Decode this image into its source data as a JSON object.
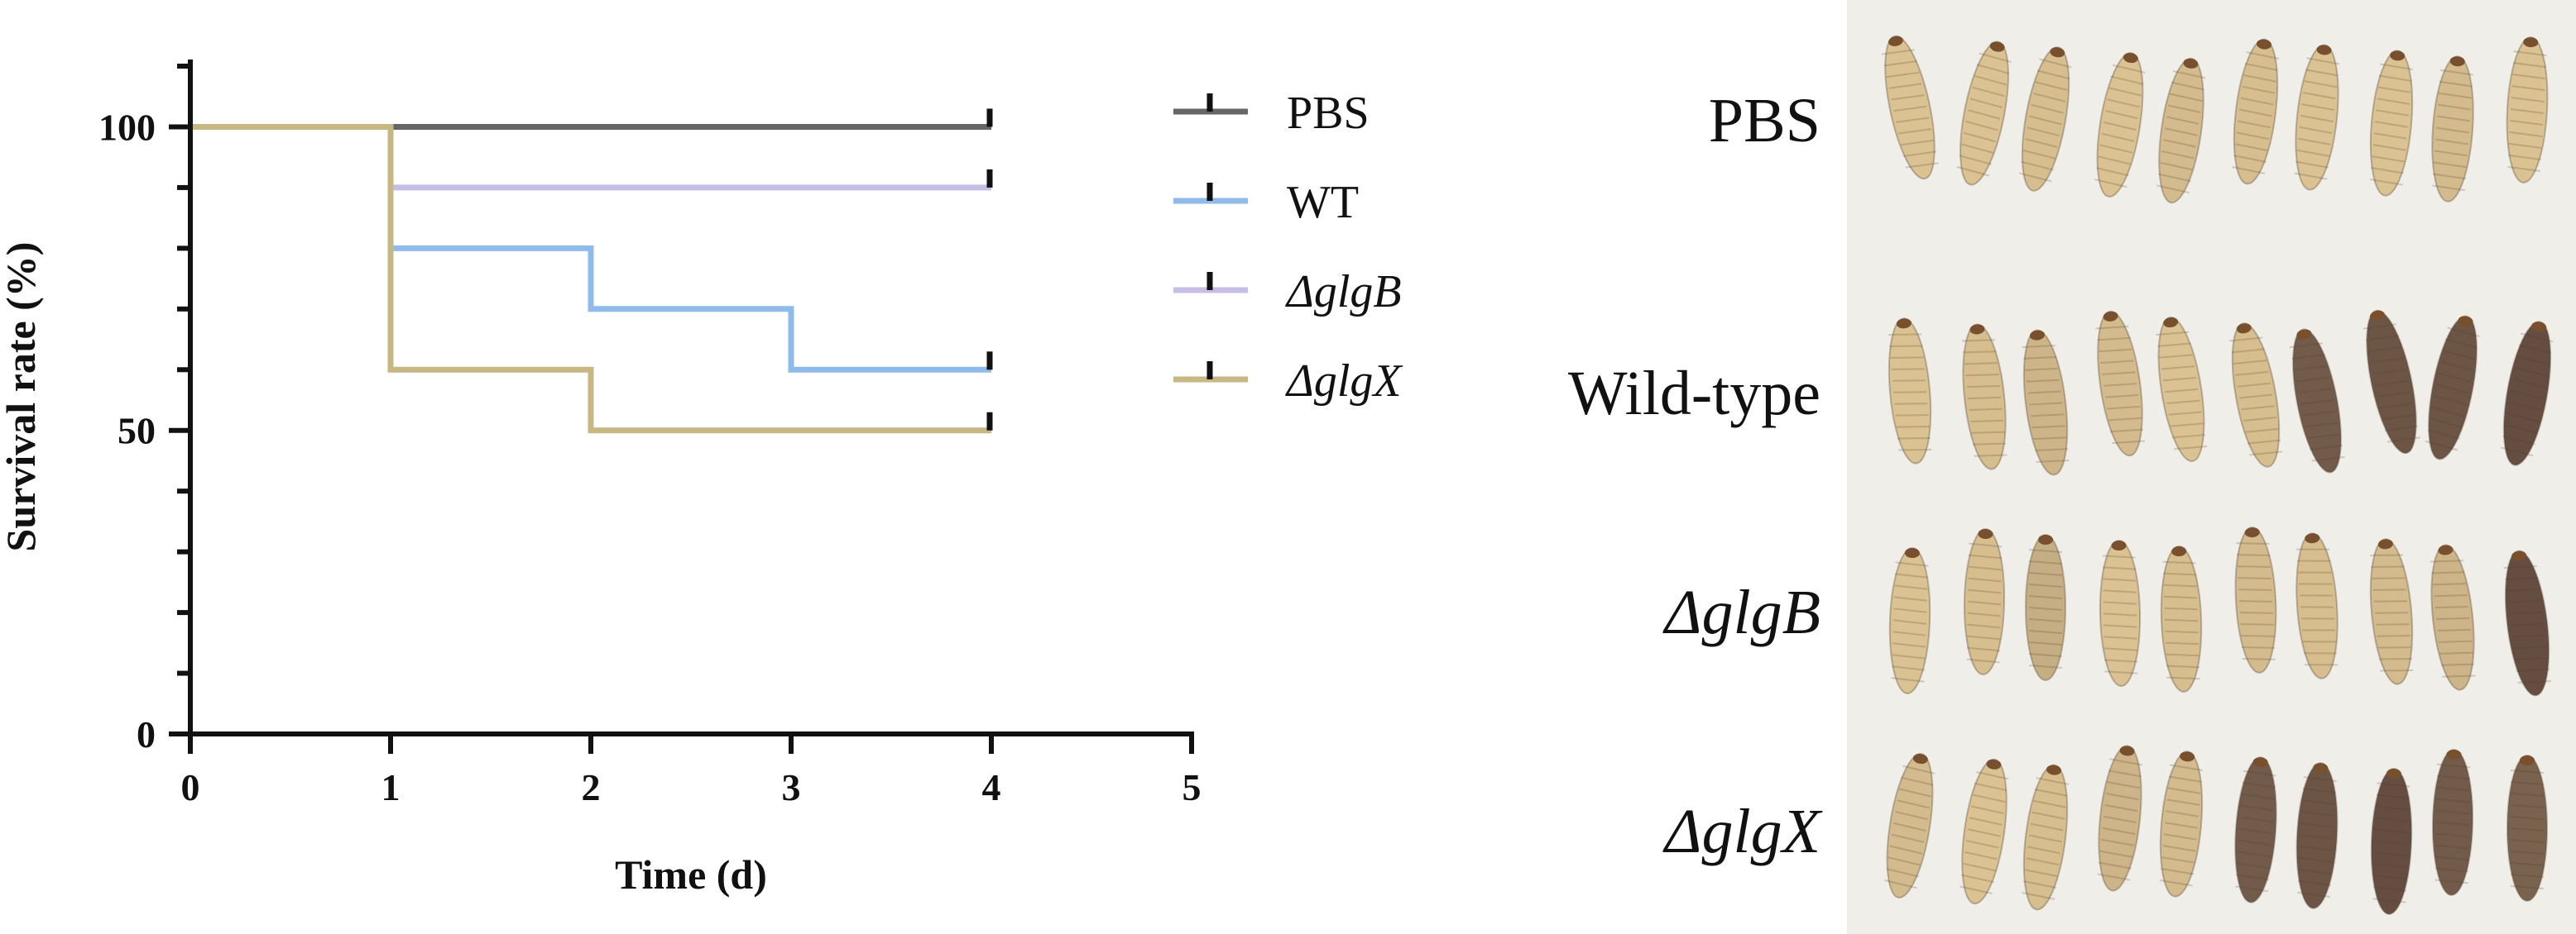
{
  "chart_data": {
    "type": "line",
    "step": true,
    "title": "",
    "xlabel": "Time (d)",
    "ylabel": "Survival rate (%)",
    "xlim": [
      0,
      5
    ],
    "ylim": [
      0,
      110
    ],
    "x_ticks": [
      "0",
      "1",
      "2",
      "3",
      "4",
      "5"
    ],
    "y_ticks": [
      "0",
      "50",
      "100"
    ],
    "legend_position": "top-right",
    "series": [
      {
        "name": "PBS",
        "italic": false,
        "color": "#666666",
        "x": [
          0,
          4
        ],
        "y": [
          100,
          100
        ]
      },
      {
        "name": "WT",
        "italic": false,
        "color": "#8fbbea",
        "x": [
          0,
          1,
          1,
          2,
          2,
          3,
          3,
          4
        ],
        "y": [
          100,
          100,
          80,
          80,
          70,
          70,
          60,
          60
        ]
      },
      {
        "name": "ΔglgB",
        "italic": true,
        "color": "#c8bde6",
        "x": [
          0,
          1,
          1,
          4
        ],
        "y": [
          100,
          100,
          90,
          90
        ]
      },
      {
        "name": "ΔglgX",
        "italic": true,
        "color": "#c6b783",
        "x": [
          0,
          1,
          1,
          2,
          2,
          4
        ],
        "y": [
          100,
          100,
          60,
          60,
          50,
          50
        ]
      }
    ]
  },
  "photo_panel": {
    "background": "#efeee9",
    "rows": [
      {
        "label": "PBS",
        "italic": false,
        "larvae": [
          0.05,
          0.05,
          0.08,
          0.05,
          0.1,
          0.08,
          0.05,
          0.05,
          0.1,
          0.05
        ]
      },
      {
        "label": "Wild-type",
        "italic": false,
        "larvae": [
          0.05,
          0.08,
          0.15,
          0.1,
          0.05,
          0.08,
          0.85,
          0.9,
          0.9,
          0.95
        ]
      },
      {
        "label": "ΔglgB",
        "italic": true,
        "larvae": [
          0.05,
          0.08,
          0.2,
          0.05,
          0.08,
          0.1,
          0.08,
          0.1,
          0.15,
          0.95
        ]
      },
      {
        "label": "ΔglgX",
        "italic": true,
        "larvae": [
          0.1,
          0.05,
          0.08,
          0.15,
          0.1,
          0.85,
          0.9,
          0.95,
          0.85,
          0.8
        ]
      }
    ]
  }
}
